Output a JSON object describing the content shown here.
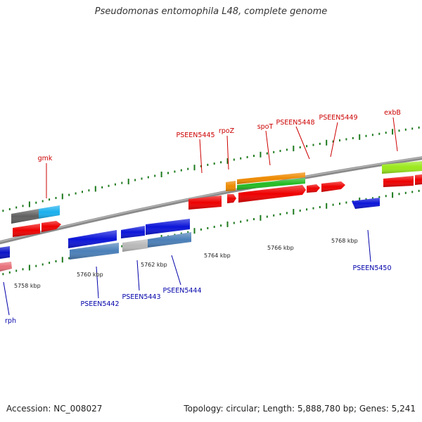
{
  "title": "Pseudomonas entomophila L48, complete genome",
  "footer": {
    "accession": "Accession: NC_008027",
    "summary": "Topology: circular; Length: 5,888,780 bp; Genes: 5,241"
  },
  "colors": {
    "backbone": "#7a7a7a",
    "tick": "#1d7a1d",
    "forward_label": "#cc0000",
    "reverse_label": "#0000aa"
  },
  "ticks": [
    {
      "label": "5758 kbp"
    },
    {
      "label": "5760 kbp"
    },
    {
      "label": "5762 kbp"
    },
    {
      "label": "5764 kbp"
    },
    {
      "label": "5766 kbp"
    },
    {
      "label": "5768 kbp"
    }
  ],
  "genes": [
    {
      "name": "gmk",
      "strand": "forward"
    },
    {
      "name": "PSEEN5445",
      "strand": "forward"
    },
    {
      "name": "rpoZ",
      "strand": "forward"
    },
    {
      "name": "spoT",
      "strand": "forward"
    },
    {
      "name": "PSEEN5448",
      "strand": "forward"
    },
    {
      "name": "PSEEN5449",
      "strand": "forward"
    },
    {
      "name": "exbB",
      "strand": "forward"
    },
    {
      "name": "rph",
      "strand": "reverse"
    },
    {
      "name": "PSEEN5442",
      "strand": "reverse"
    },
    {
      "name": "PSEEN5443",
      "strand": "reverse"
    },
    {
      "name": "PSEEN5444",
      "strand": "reverse"
    },
    {
      "name": "PSEEN5450",
      "strand": "reverse"
    }
  ]
}
